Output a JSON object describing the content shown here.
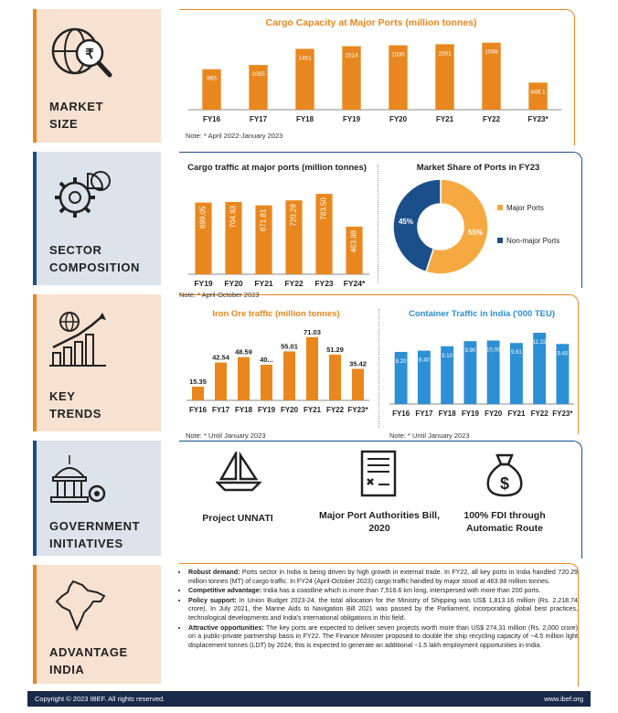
{
  "sections": [
    {
      "id": "market",
      "label_lines": [
        "MARKET",
        "SIZE"
      ],
      "icon": "globe-rupee-magnifier-icon"
    },
    {
      "id": "sector",
      "label_lines": [
        "SECTOR",
        "COMPOSITION"
      ],
      "icon": "gears-pie-icon"
    },
    {
      "id": "trends",
      "label_lines": [
        "KEY",
        "TRENDS"
      ],
      "icon": "growth-chart-icon"
    },
    {
      "id": "gov",
      "label_lines": [
        "GOVERNMENT",
        "INITIATIVES"
      ],
      "icon": "government-building-gear-icon"
    },
    {
      "id": "adv",
      "label_lines": [
        "ADVANTAGE",
        "INDIA"
      ],
      "icon": "india-map-icon"
    }
  ],
  "colors": {
    "orange": "#e8871e",
    "blue": "#1b4f8a",
    "light_blue": "#2d8fd4"
  },
  "chart_data": [
    {
      "id": "cargo_capacity",
      "type": "bar",
      "title": "Cargo Capacity at Major Ports (million tonnes)",
      "categories": [
        "FY16",
        "FY17",
        "FY18",
        "FY19",
        "FY20",
        "FY21",
        "FY22",
        "FY23*"
      ],
      "values": [
        965,
        1065,
        1451,
        1514,
        1535,
        1561,
        1598,
        646.1
      ],
      "labels": [
        "965",
        "1065",
        "1451",
        "1514",
        "1535",
        "1561",
        "1598",
        "646.1"
      ],
      "note": "Note: * April 2022-January 2023",
      "ylim": [
        0,
        1700
      ]
    },
    {
      "id": "cargo_traffic",
      "type": "bar",
      "title": "Cargo traffic at major ports (million tonnes)",
      "categories": [
        "FY19",
        "FY20",
        "FY21",
        "FY22",
        "FY23",
        "FY24*"
      ],
      "values": [
        699.05,
        704.93,
        671.81,
        720.29,
        783.5,
        463.98
      ],
      "labels": [
        "699.05",
        "704.93",
        "671.81",
        "720.29",
        "783.50",
        "463.98"
      ],
      "note": "Note: * April-October 2023",
      "ylim": [
        0,
        820
      ]
    },
    {
      "id": "market_share",
      "type": "pie",
      "title": "Market Share of Ports in FY23",
      "slices": [
        {
          "name": "Major Ports",
          "value": 55,
          "label": "55%",
          "color": "#f7a941"
        },
        {
          "name": "Non-major Ports",
          "value": 45,
          "label": "45%",
          "color": "#1b4f8a"
        }
      ]
    },
    {
      "id": "iron_ore",
      "type": "bar",
      "title": "Iron Ore traffic (million tonnes)",
      "categories": [
        "FY16",
        "FY17",
        "FY18",
        "FY19",
        "FY20",
        "FY21",
        "FY22",
        "FY23*"
      ],
      "values": [
        15.35,
        42.54,
        48.59,
        40,
        55.01,
        71.03,
        51.29,
        35.42
      ],
      "labels": [
        "15.35",
        "42.54",
        "48.59",
        "40...",
        "55.01",
        "71.03",
        "51.29",
        "35.42"
      ],
      "note": "Note: * Until January 2023",
      "ylim": [
        0,
        78
      ]
    },
    {
      "id": "container",
      "type": "bar",
      "title": "Container Traffic in India ('000 TEU)",
      "categories": [
        "FY16",
        "FY17",
        "FY18",
        "FY19",
        "FY20",
        "FY21",
        "FY22",
        "FY23*"
      ],
      "values": [
        8.2,
        8.4,
        9.1,
        9.9,
        10.0,
        9.61,
        11.22,
        9.45
      ],
      "labels": [
        "8.20",
        "8.40",
        "9.10",
        "9.90",
        "10.00",
        "9.61",
        "11.22",
        "9.45"
      ],
      "note": "Note: * Until January 2023",
      "ylim": [
        0,
        11.8
      ]
    }
  ],
  "initiatives": [
    {
      "label": "Project UNNATI",
      "icon": "sailboat-icon"
    },
    {
      "label": "Major Port Authorities Bill, 2020",
      "icon": "document-icon"
    },
    {
      "label": "100% FDI through Automatic Route",
      "icon": "money-bag-icon"
    }
  ],
  "advantages": [
    {
      "head": "Robust demand:",
      "text": " Ports sector in India is being driven by high growth in external trade. In FY22, all key ports in India handled 720.29 million tonnes (MT) of cargo traffic. In FY24 (April-October 2023) cargo traffic handled by major stood at 463.98 million tonnes."
    },
    {
      "head": "Competitive advantage:",
      "text": " India has a coastline which is more than 7,516.6 km long, interspersed with more than 200 ports."
    },
    {
      "head": "Policy support:",
      "text": " In Union Budget 2023-24, the total allocation for the Ministry of Shipping was US$ 1,813.16 million (Rs. 2,218.74 crore). In July 2021, the Marine Aids to Navigation Bill 2021 was passed by the Parliament, incorporating global best practices, technological developments and India's international obligations in this field."
    },
    {
      "head": "Attractive opportunities:",
      "text": " The key ports are expected to deliver seven projects worth more than US$ 274.31 million (Rs. 2,000 crore) on a public-private partnership basis in FY22. The Finance Minister proposed to double the ship recycling capacity of ~4.5 million light displacement tonnes (LDT) by 2024; this is expected to generate an additional ~1.5 lakh employment opportunities in India."
    }
  ],
  "footer": {
    "copyright": "Copyright © 2023 IBEF. All rights reserved.",
    "url": "www.ibef.org"
  }
}
